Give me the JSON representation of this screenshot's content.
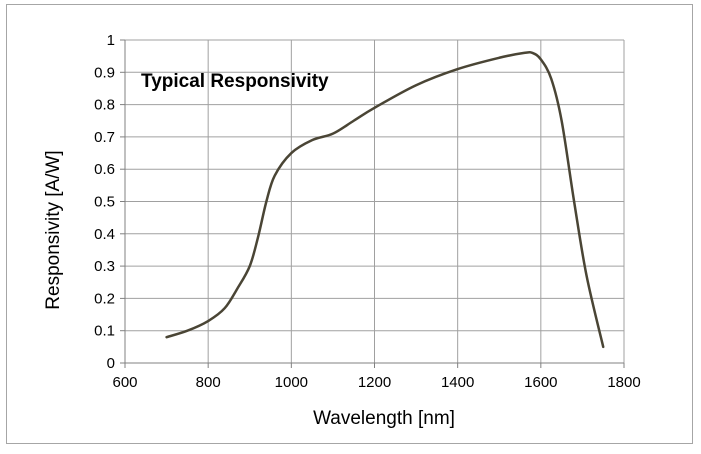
{
  "chart_data": {
    "type": "line",
    "title": "Typical Responsivity",
    "xlabel": "Wavelength [nm]",
    "ylabel": "Responsivity [A/W]",
    "xlim": [
      600,
      1800
    ],
    "ylim": [
      0,
      1
    ],
    "xticks": [
      600,
      800,
      1000,
      1200,
      1400,
      1600,
      1800
    ],
    "yticks": [
      0,
      0.1,
      0.2,
      0.3,
      0.4,
      0.5,
      0.6,
      0.7,
      0.8,
      0.9,
      1
    ],
    "ytick_labels": [
      "0",
      "0.1",
      "0.2",
      "0.3",
      "0.4",
      "0.5",
      "0.6",
      "0.7",
      "0.8",
      "0.9",
      "1"
    ],
    "grid": true,
    "series": [
      {
        "name": "Typical Responsivity",
        "color": "#4a4535",
        "x": [
          700,
          750,
          800,
          840,
          870,
          900,
          920,
          940,
          960,
          1000,
          1050,
          1100,
          1150,
          1200,
          1300,
          1400,
          1500,
          1560,
          1580,
          1600,
          1625,
          1650,
          1680,
          1710,
          1750
        ],
        "y": [
          0.08,
          0.1,
          0.13,
          0.17,
          0.23,
          0.3,
          0.39,
          0.5,
          0.58,
          0.65,
          0.69,
          0.71,
          0.75,
          0.79,
          0.86,
          0.91,
          0.945,
          0.96,
          0.96,
          0.94,
          0.88,
          0.75,
          0.5,
          0.27,
          0.05
        ]
      }
    ]
  }
}
